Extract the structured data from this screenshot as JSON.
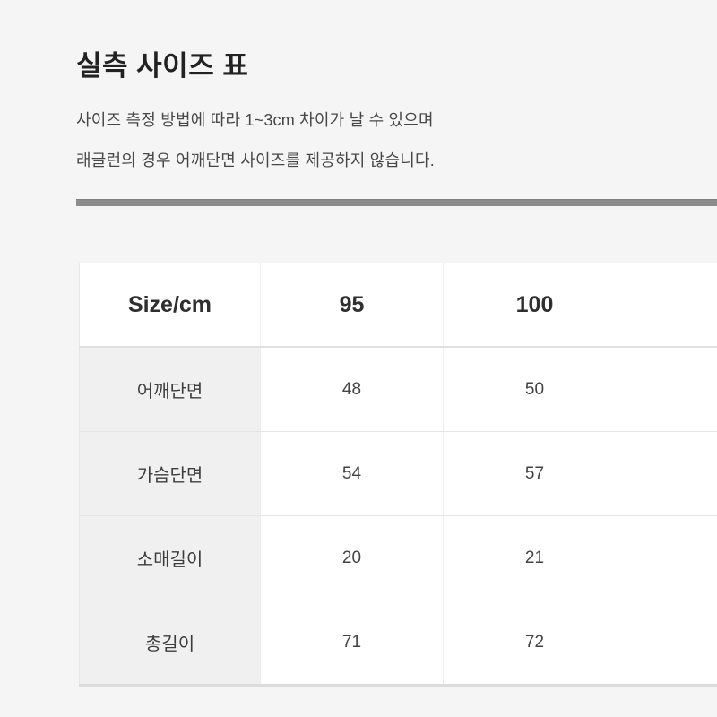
{
  "page": {
    "title": "실측 사이즈 표",
    "notes": [
      "사이즈 측정 방법에 따라 1~3cm 차이가 날 수 있으며",
      "래글런의 경우 어깨단면 사이즈를 제공하지 않습니다."
    ],
    "divider_color": "#8d8d8d",
    "background_color": "#f5f5f5"
  },
  "size_table": {
    "columns": [
      "Size/cm",
      "95",
      "100",
      ""
    ],
    "rows": [
      {
        "label": "어깨단면",
        "values": [
          "48",
          "50",
          ""
        ]
      },
      {
        "label": "가슴단면",
        "values": [
          "54",
          "57",
          ""
        ]
      },
      {
        "label": "소매길이",
        "values": [
          "20",
          "21",
          ""
        ]
      },
      {
        "label": "총길이",
        "values": [
          "71",
          "72",
          ""
        ]
      }
    ]
  }
}
